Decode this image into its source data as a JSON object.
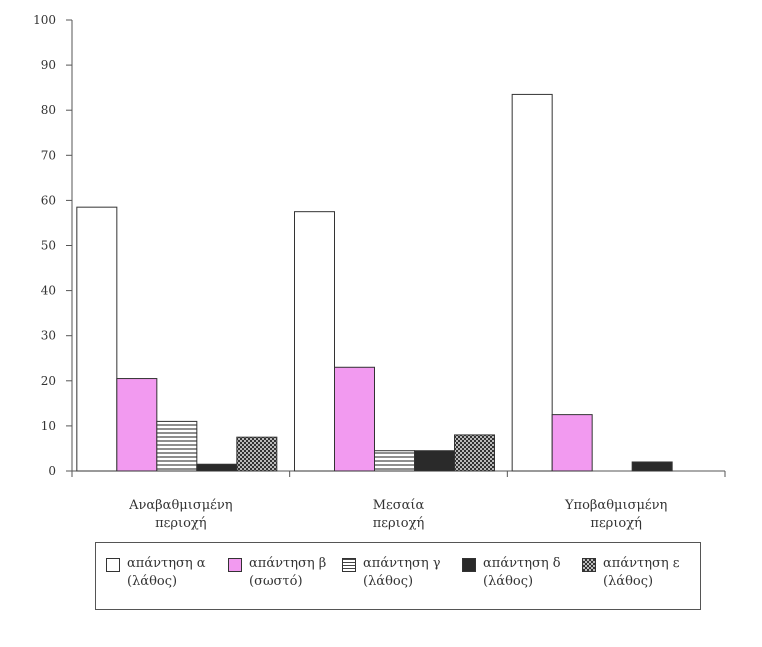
{
  "chart_data": {
    "type": "bar",
    "categories": [
      [
        "Αναβαθμισμένη",
        "περιοχή"
      ],
      [
        "Μεσαία",
        "περιοχή"
      ],
      [
        "Υποβαθμισμένη",
        "περιοχή"
      ]
    ],
    "series": [
      {
        "name": [
          "απάντηση α",
          "(λάθος)"
        ],
        "values": [
          58.5,
          57.5,
          83.5
        ],
        "fill": "white"
      },
      {
        "name": [
          "απάντηση β",
          "(σωστό)"
        ],
        "values": [
          20.5,
          23,
          12.5
        ],
        "fill": "pink"
      },
      {
        "name": [
          "απάντηση γ",
          "(λάθος)"
        ],
        "values": [
          11,
          4.5,
          0
        ],
        "fill": "hlines"
      },
      {
        "name": [
          "απάντηση δ",
          "(λάθος)"
        ],
        "values": [
          1.5,
          4.5,
          2
        ],
        "fill": "dark"
      },
      {
        "name": [
          "απάντηση ε",
          "(λάθος)"
        ],
        "values": [
          7.5,
          8,
          0
        ],
        "fill": "check"
      }
    ],
    "yticks": [
      0,
      10,
      20,
      30,
      40,
      50,
      60,
      70,
      80,
      90,
      100
    ],
    "ylim": [
      0,
      100
    ],
    "grid": false,
    "legend_position": "bottom"
  },
  "colors": {
    "pink": "#f29af0",
    "dark": "#2a2a2a",
    "axis": "#555555"
  }
}
